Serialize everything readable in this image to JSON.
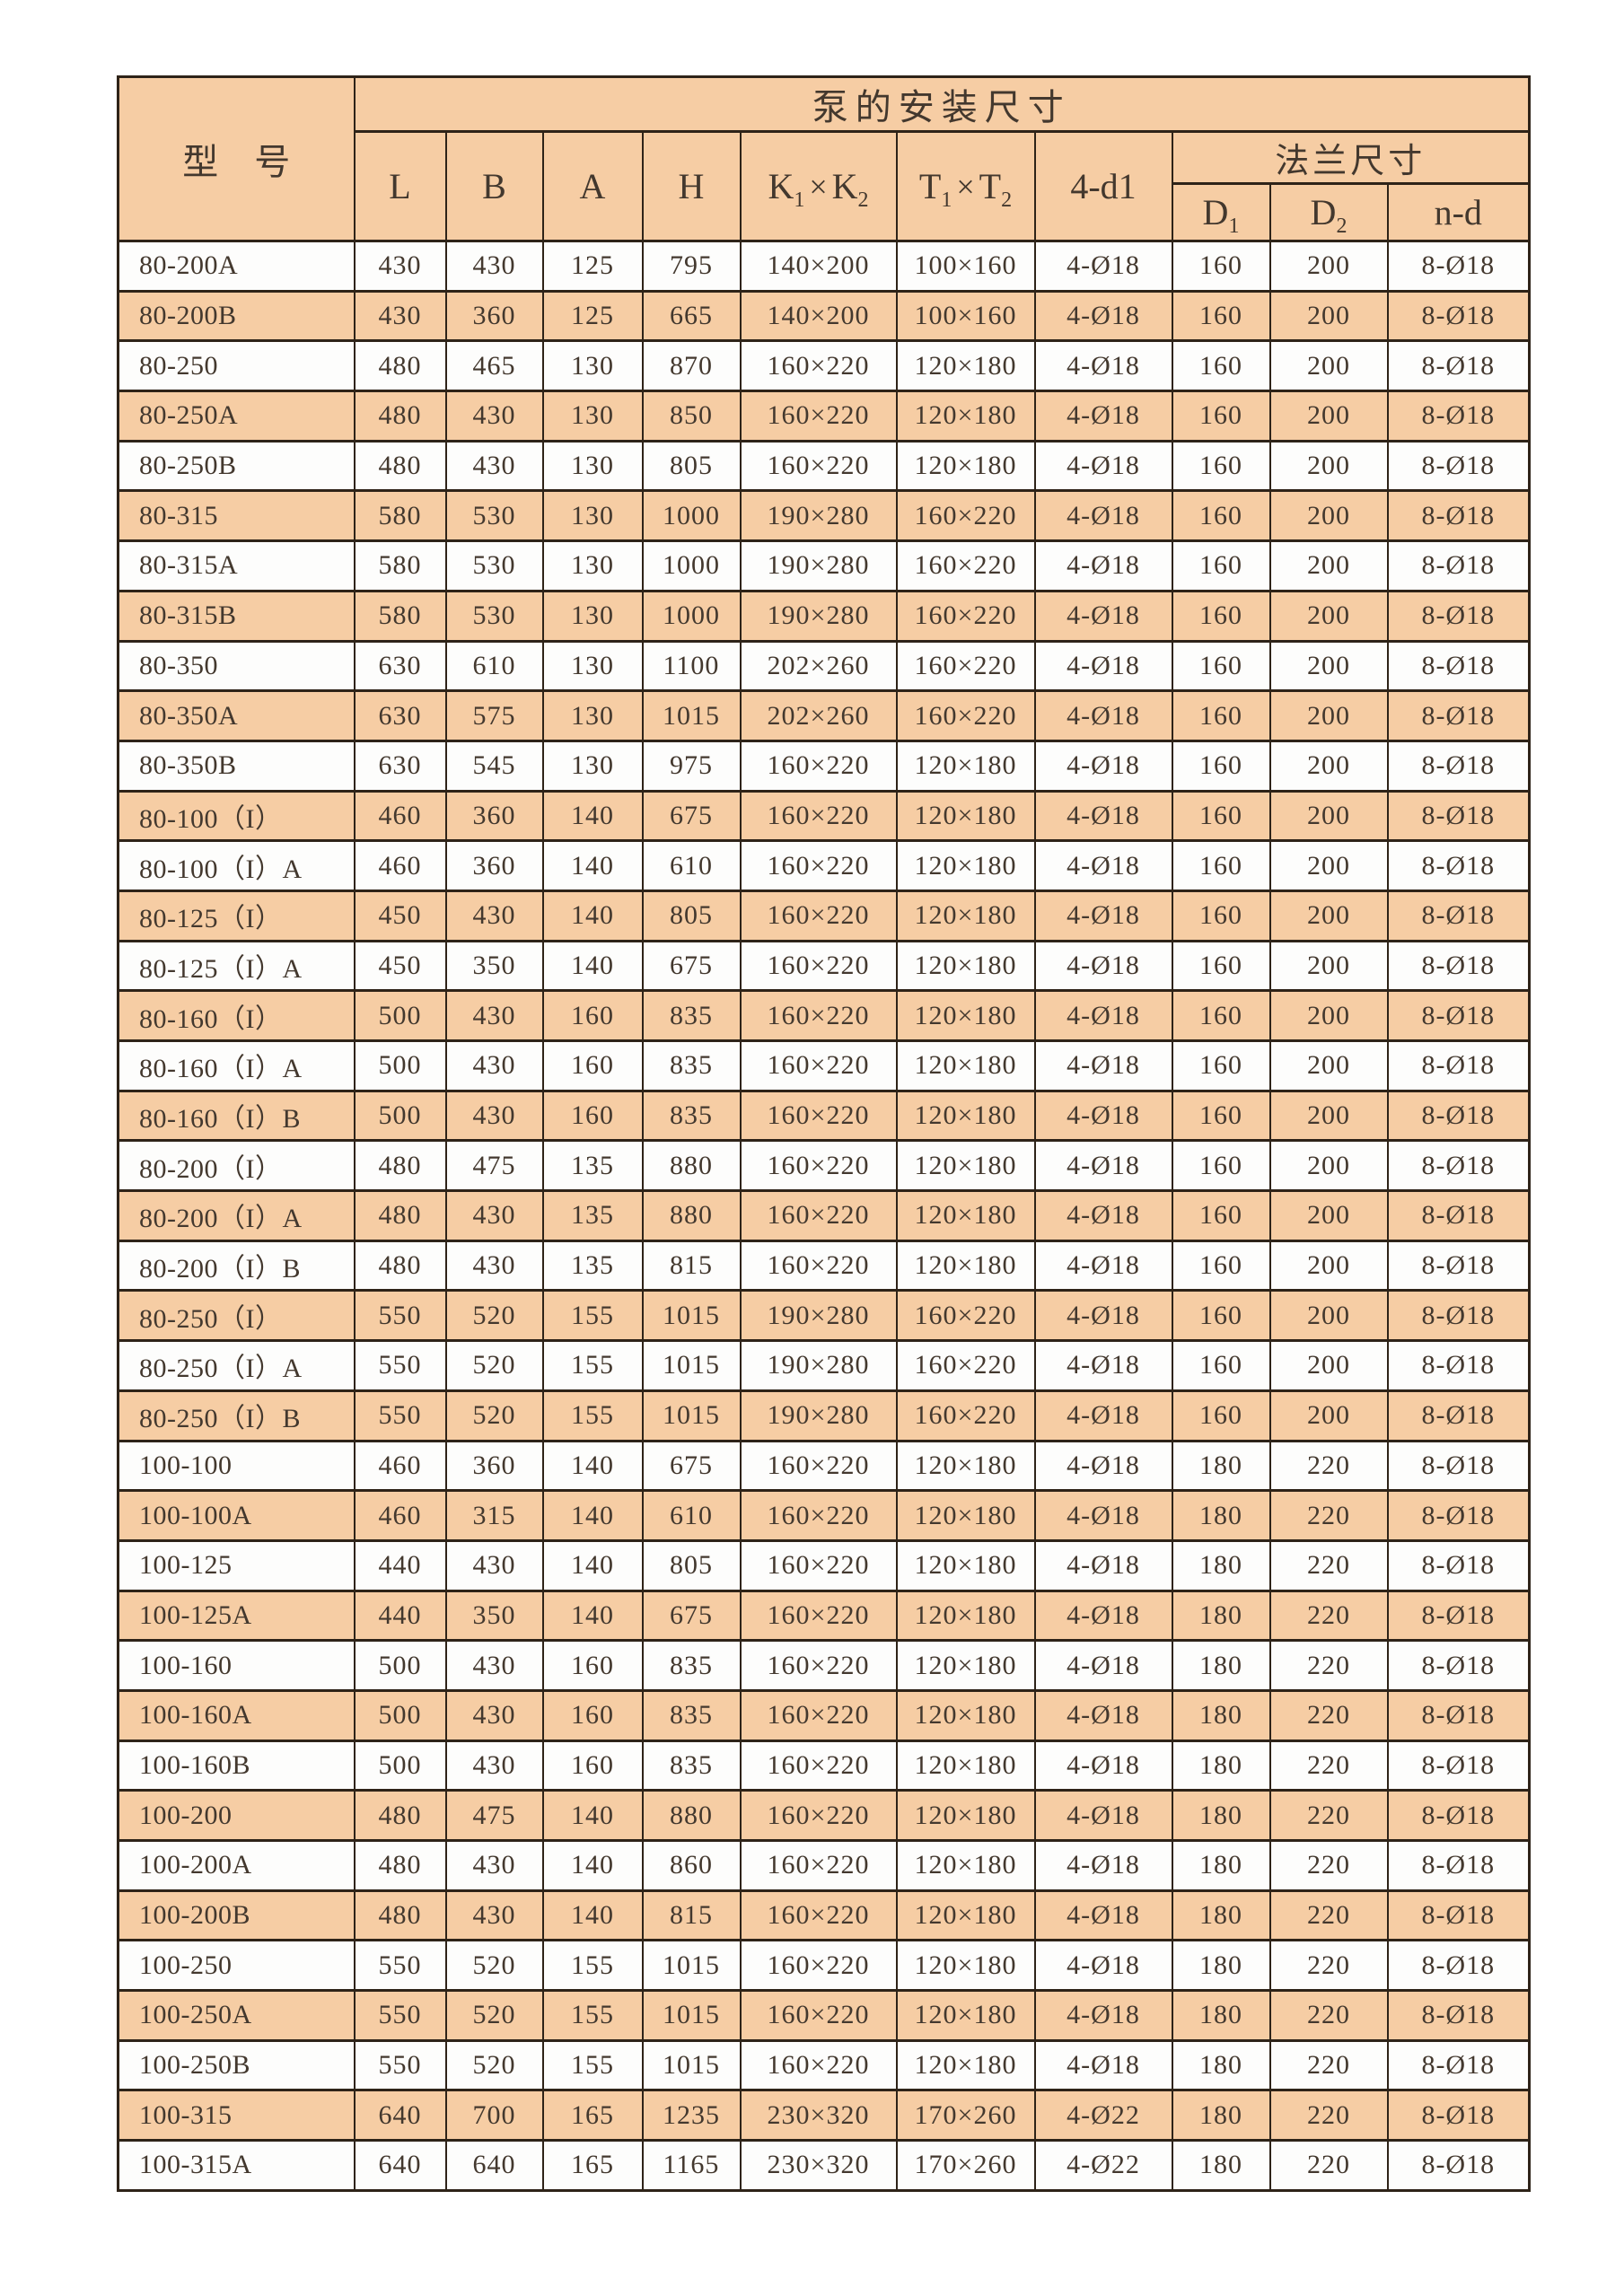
{
  "page": {
    "background": "#ffffff"
  },
  "colors": {
    "header_fill": "#F6CDA4",
    "row_even_fill": "#F6CDA4",
    "row_odd_fill": "#FDFDFC",
    "border": "#2E2318",
    "text": "#43382E"
  },
  "table": {
    "header": {
      "model_label": "型　号",
      "install_label": "泵的安装尺寸",
      "flange_label": "法兰尺寸",
      "col_l": "L",
      "col_b": "B",
      "col_a": "A",
      "col_h": "H",
      "k": {
        "b1": "K",
        "s1": "1",
        "times": "×",
        "b2": "K",
        "s2": "2"
      },
      "t": {
        "b1": "T",
        "s1": "1",
        "times": "×",
        "b2": "T",
        "s2": "2"
      },
      "col_4d1": "4-d1",
      "d1": {
        "b": "D",
        "s": "1"
      },
      "d2": {
        "b": "D",
        "s": "2"
      },
      "col_nd": "n-d"
    },
    "rows": [
      [
        "80-200A",
        "430",
        "430",
        "125",
        "795",
        "140×200",
        "100×160",
        "4-Ø18",
        "160",
        "200",
        "8-Ø18"
      ],
      [
        "80-200B",
        "430",
        "360",
        "125",
        "665",
        "140×200",
        "100×160",
        "4-Ø18",
        "160",
        "200",
        "8-Ø18"
      ],
      [
        "80-250",
        "480",
        "465",
        "130",
        "870",
        "160×220",
        "120×180",
        "4-Ø18",
        "160",
        "200",
        "8-Ø18"
      ],
      [
        "80-250A",
        "480",
        "430",
        "130",
        "850",
        "160×220",
        "120×180",
        "4-Ø18",
        "160",
        "200",
        "8-Ø18"
      ],
      [
        "80-250B",
        "480",
        "430",
        "130",
        "805",
        "160×220",
        "120×180",
        "4-Ø18",
        "160",
        "200",
        "8-Ø18"
      ],
      [
        "80-315",
        "580",
        "530",
        "130",
        "1000",
        "190×280",
        "160×220",
        "4-Ø18",
        "160",
        "200",
        "8-Ø18"
      ],
      [
        "80-315A",
        "580",
        "530",
        "130",
        "1000",
        "190×280",
        "160×220",
        "4-Ø18",
        "160",
        "200",
        "8-Ø18"
      ],
      [
        "80-315B",
        "580",
        "530",
        "130",
        "1000",
        "190×280",
        "160×220",
        "4-Ø18",
        "160",
        "200",
        "8-Ø18"
      ],
      [
        "80-350",
        "630",
        "610",
        "130",
        "1100",
        "202×260",
        "160×220",
        "4-Ø18",
        "160",
        "200",
        "8-Ø18"
      ],
      [
        "80-350A",
        "630",
        "575",
        "130",
        "1015",
        "202×260",
        "160×220",
        "4-Ø18",
        "160",
        "200",
        "8-Ø18"
      ],
      [
        "80-350B",
        "630",
        "545",
        "130",
        "975",
        "160×220",
        "120×180",
        "4-Ø18",
        "160",
        "200",
        "8-Ø18"
      ],
      [
        "80-100（I）",
        "460",
        "360",
        "140",
        "675",
        "160×220",
        "120×180",
        "4-Ø18",
        "160",
        "200",
        "8-Ø18"
      ],
      [
        "80-100（I）A",
        "460",
        "360",
        "140",
        "610",
        "160×220",
        "120×180",
        "4-Ø18",
        "160",
        "200",
        "8-Ø18"
      ],
      [
        "80-125（I）",
        "450",
        "430",
        "140",
        "805",
        "160×220",
        "120×180",
        "4-Ø18",
        "160",
        "200",
        "8-Ø18"
      ],
      [
        "80-125（I）A",
        "450",
        "350",
        "140",
        "675",
        "160×220",
        "120×180",
        "4-Ø18",
        "160",
        "200",
        "8-Ø18"
      ],
      [
        "80-160（I）",
        "500",
        "430",
        "160",
        "835",
        "160×220",
        "120×180",
        "4-Ø18",
        "160",
        "200",
        "8-Ø18"
      ],
      [
        "80-160（I）A",
        "500",
        "430",
        "160",
        "835",
        "160×220",
        "120×180",
        "4-Ø18",
        "160",
        "200",
        "8-Ø18"
      ],
      [
        "80-160（I）B",
        "500",
        "430",
        "160",
        "835",
        "160×220",
        "120×180",
        "4-Ø18",
        "160",
        "200",
        "8-Ø18"
      ],
      [
        "80-200（I）",
        "480",
        "475",
        "135",
        "880",
        "160×220",
        "120×180",
        "4-Ø18",
        "160",
        "200",
        "8-Ø18"
      ],
      [
        "80-200（I）A",
        "480",
        "430",
        "135",
        "880",
        "160×220",
        "120×180",
        "4-Ø18",
        "160",
        "200",
        "8-Ø18"
      ],
      [
        "80-200（I）B",
        "480",
        "430",
        "135",
        "815",
        "160×220",
        "120×180",
        "4-Ø18",
        "160",
        "200",
        "8-Ø18"
      ],
      [
        "80-250（I）",
        "550",
        "520",
        "155",
        "1015",
        "190×280",
        "160×220",
        "4-Ø18",
        "160",
        "200",
        "8-Ø18"
      ],
      [
        "80-250（I）A",
        "550",
        "520",
        "155",
        "1015",
        "190×280",
        "160×220",
        "4-Ø18",
        "160",
        "200",
        "8-Ø18"
      ],
      [
        "80-250（I）B",
        "550",
        "520",
        "155",
        "1015",
        "190×280",
        "160×220",
        "4-Ø18",
        "160",
        "200",
        "8-Ø18"
      ],
      [
        "100-100",
        "460",
        "360",
        "140",
        "675",
        "160×220",
        "120×180",
        "4-Ø18",
        "180",
        "220",
        "8-Ø18"
      ],
      [
        "100-100A",
        "460",
        "315",
        "140",
        "610",
        "160×220",
        "120×180",
        "4-Ø18",
        "180",
        "220",
        "8-Ø18"
      ],
      [
        "100-125",
        "440",
        "430",
        "140",
        "805",
        "160×220",
        "120×180",
        "4-Ø18",
        "180",
        "220",
        "8-Ø18"
      ],
      [
        "100-125A",
        "440",
        "350",
        "140",
        "675",
        "160×220",
        "120×180",
        "4-Ø18",
        "180",
        "220",
        "8-Ø18"
      ],
      [
        "100-160",
        "500",
        "430",
        "160",
        "835",
        "160×220",
        "120×180",
        "4-Ø18",
        "180",
        "220",
        "8-Ø18"
      ],
      [
        "100-160A",
        "500",
        "430",
        "160",
        "835",
        "160×220",
        "120×180",
        "4-Ø18",
        "180",
        "220",
        "8-Ø18"
      ],
      [
        "100-160B",
        "500",
        "430",
        "160",
        "835",
        "160×220",
        "120×180",
        "4-Ø18",
        "180",
        "220",
        "8-Ø18"
      ],
      [
        "100-200",
        "480",
        "475",
        "140",
        "880",
        "160×220",
        "120×180",
        "4-Ø18",
        "180",
        "220",
        "8-Ø18"
      ],
      [
        "100-200A",
        "480",
        "430",
        "140",
        "860",
        "160×220",
        "120×180",
        "4-Ø18",
        "180",
        "220",
        "8-Ø18"
      ],
      [
        "100-200B",
        "480",
        "430",
        "140",
        "815",
        "160×220",
        "120×180",
        "4-Ø18",
        "180",
        "220",
        "8-Ø18"
      ],
      [
        "100-250",
        "550",
        "520",
        "155",
        "1015",
        "160×220",
        "120×180",
        "4-Ø18",
        "180",
        "220",
        "8-Ø18"
      ],
      [
        "100-250A",
        "550",
        "520",
        "155",
        "1015",
        "160×220",
        "120×180",
        "4-Ø18",
        "180",
        "220",
        "8-Ø18"
      ],
      [
        "100-250B",
        "550",
        "520",
        "155",
        "1015",
        "160×220",
        "120×180",
        "4-Ø18",
        "180",
        "220",
        "8-Ø18"
      ],
      [
        "100-315",
        "640",
        "700",
        "165",
        "1235",
        "230×320",
        "170×260",
        "4-Ø22",
        "180",
        "220",
        "8-Ø18"
      ],
      [
        "100-315A",
        "640",
        "640",
        "165",
        "1165",
        "230×320",
        "170×260",
        "4-Ø22",
        "180",
        "220",
        "8-Ø18"
      ]
    ]
  }
}
